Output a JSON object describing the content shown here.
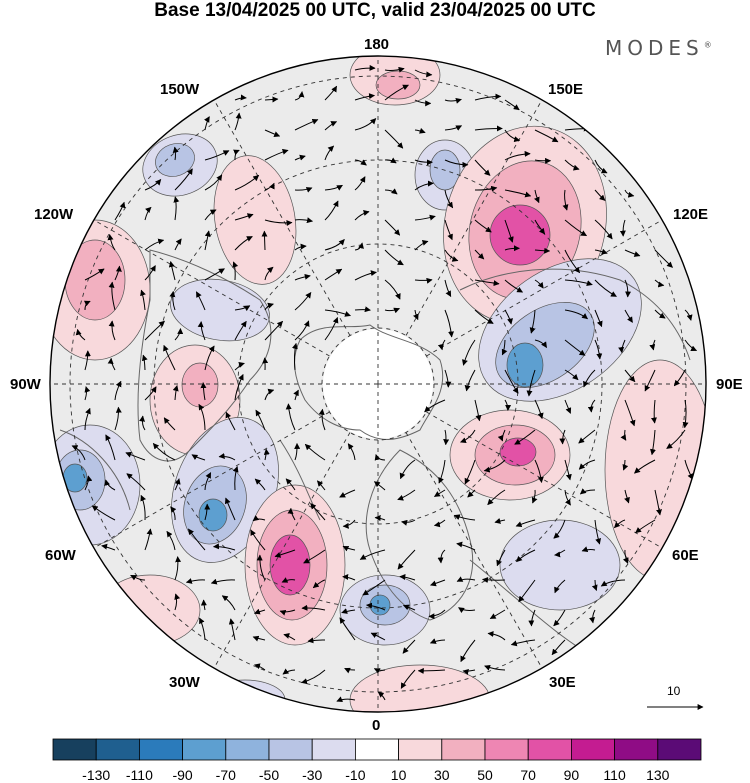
{
  "title": "Base 13/04/2025 00 UTC, valid 23/04/2025 00 UTC",
  "brand": "MODES",
  "brand_mark": "®",
  "longitude_labels": {
    "top": "180",
    "bottom": "0",
    "left": "90W",
    "right": "90E",
    "upper_left_1": "150W",
    "upper_left_2": "120W",
    "lower_left_1": "60W",
    "lower_left_2": "30W",
    "upper_right_1": "150E",
    "upper_right_2": "120E",
    "lower_right_1": "60E",
    "lower_right_2": "30E"
  },
  "vector_scale": {
    "value": "10"
  },
  "colorbar": {
    "colors": [
      "#17405e",
      "#1f5f8f",
      "#2b7bbb",
      "#5d9fd0",
      "#8fb3dd",
      "#b8c4e4",
      "#dcdcef",
      "#ffffff",
      "#f8d9dc",
      "#f2b0c0",
      "#ee86b3",
      "#e252a6",
      "#c41c91",
      "#8f0c85",
      "#5b0b76"
    ],
    "ticks": [
      "-130",
      "-110",
      "-90",
      "-70",
      "-50",
      "-30",
      "-10",
      "10",
      "30",
      "50",
      "70",
      "90",
      "110",
      "130"
    ]
  },
  "anomaly_colors": {
    "strong_negative": "#5d9fd0",
    "negative": "#b8c4e4",
    "weak_negative": "#dcdcef",
    "weak_positive": "#f8d9dc",
    "positive": "#f2b0c0",
    "strong_positive": "#e252a6",
    "background": "#ebebeb"
  }
}
